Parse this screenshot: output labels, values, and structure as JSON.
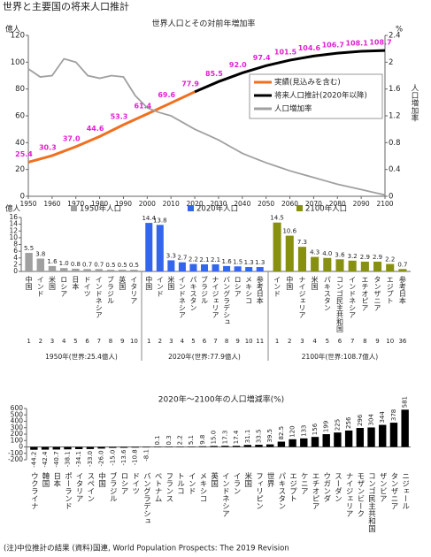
{
  "header": {
    "title": "世界と主要国の将来人口推計"
  },
  "chart_data": [
    {
      "type": "line",
      "title": "世界人口とその対前年増加率",
      "y_label": "億人",
      "y2_label": "%",
      "y2_axis_title": "人口増加率",
      "xlim": [
        1950,
        2100
      ],
      "xticks": [
        1950,
        1960,
        1970,
        1980,
        1990,
        2000,
        2010,
        2020,
        2030,
        2040,
        2050,
        2060,
        2070,
        2080,
        2090,
        2100
      ],
      "ylim": [
        0,
        120
      ],
      "yticks": [
        0,
        20,
        40,
        60,
        80,
        100,
        120
      ],
      "y2lim": [
        0,
        2.4
      ],
      "y2ticks": [
        0,
        0.4,
        0.8,
        1.2,
        1.6,
        2,
        2.4
      ],
      "grid": false,
      "legend": "center right",
      "label_color": "#e020d0",
      "series": [
        {
          "name": "実績(見込みを含む)",
          "color": "#f07020",
          "x": [
            1950,
            1960,
            1970,
            1980,
            1990,
            2000,
            2010,
            2020
          ],
          "values": [
            25.4,
            30.3,
            37.0,
            44.6,
            53.3,
            61.4,
            69.6,
            77.9
          ],
          "value_labels": [
            "25.4",
            "30.3",
            "37.0",
            "44.6",
            "53.3",
            "61.4",
            "69.6",
            "77.9"
          ]
        },
        {
          "name": "将来人口推計(2020年以降)",
          "color": "#000000",
          "x": [
            2020,
            2030,
            2040,
            2050,
            2060,
            2070,
            2080,
            2090,
            2100
          ],
          "values": [
            77.9,
            85.5,
            92.0,
            97.4,
            101.5,
            104.6,
            106.7,
            108.1,
            108.7
          ],
          "value_labels": [
            null,
            "85.5",
            "92.0",
            "97.4",
            "101.5",
            "104.6",
            "106.7",
            "108.1",
            "108.7"
          ]
        },
        {
          "name": "人口増加率",
          "color": "#a0a0a0",
          "axis": "y2",
          "x": [
            1950,
            1955,
            1960,
            1965,
            1970,
            1975,
            1980,
            1985,
            1990,
            1995,
            2000,
            2005,
            2010,
            2015,
            2020,
            2025,
            2030,
            2035,
            2040,
            2045,
            2050,
            2055,
            2060,
            2065,
            2070,
            2075,
            2080,
            2085,
            2090,
            2095,
            2100
          ],
          "values": [
            1.9,
            1.78,
            1.8,
            2.05,
            2.0,
            1.8,
            1.76,
            1.8,
            1.78,
            1.5,
            1.32,
            1.25,
            1.2,
            1.1,
            1.0,
            0.92,
            0.84,
            0.74,
            0.64,
            0.57,
            0.5,
            0.44,
            0.38,
            0.33,
            0.28,
            0.23,
            0.18,
            0.14,
            0.1,
            0.06,
            0.02
          ]
        }
      ]
    },
    {
      "type": "bar",
      "y_label": "億人",
      "ylim": [
        0,
        16
      ],
      "yticks": [
        0,
        2,
        4,
        6,
        8,
        10,
        12,
        14,
        16
      ],
      "series": [
        {
          "name": "1950年人口",
          "color": "#a0a0a0",
          "caption": "1950年(世界:25.4億人)",
          "categories": [
            "中国",
            "インド",
            "米国",
            "ロシア",
            "日本",
            "ドイツ",
            "インドネシア",
            "ブラジル",
            "英国",
            "イタリア"
          ],
          "values": [
            5.5,
            3.8,
            1.6,
            1.0,
            0.8,
            0.7,
            0.7,
            0.5,
            0.5,
            0.5
          ],
          "value_labels": [
            "5.5",
            "3.8",
            "1.6",
            "1.0",
            "0.8",
            "0.7",
            "0.7",
            "0.5",
            "0.5",
            "0.5"
          ],
          "ranks": [
            "1",
            "2",
            "3",
            "4",
            "5",
            "6",
            "7",
            "8",
            "9",
            "10"
          ]
        },
        {
          "name": "2020年人口",
          "color": "#3366ee",
          "caption": "2020年(世界:77.9億人)",
          "categories": [
            "中国",
            "インド",
            "米国",
            "インドネシア",
            "パキスタン",
            "ブラジル",
            "ナイジェリア",
            "バングラデシュ",
            "ロシア",
            "メキシコ",
            "参考日本"
          ],
          "values": [
            14.4,
            13.8,
            3.3,
            2.7,
            2.2,
            2.1,
            2.1,
            1.6,
            1.5,
            1.3,
            1.3
          ],
          "value_labels": [
            "14.4",
            "13.8",
            "3.3",
            "2.7",
            "2.2",
            "2.1",
            "2.1",
            "1.6",
            "1.5",
            "1.3",
            "1.3"
          ],
          "ranks": [
            "1",
            "2",
            "3",
            "4",
            "5",
            "6",
            "7",
            "8",
            "9",
            "10",
            "11"
          ]
        },
        {
          "name": "2100年人口",
          "color": "#889010",
          "caption": "2100年(世界:108.7億人)",
          "categories": [
            "インド",
            "中国",
            "ナイジェリア",
            "米国",
            "パキスタン",
            "コンゴ民主共和国",
            "インドネシア",
            "エチオピア",
            "タンザニア",
            "エジプト",
            "参考日本"
          ],
          "values": [
            14.5,
            10.6,
            7.3,
            4.3,
            4.0,
            3.6,
            3.2,
            2.9,
            2.9,
            2.2,
            0.7
          ],
          "value_labels": [
            "14.5",
            "10.6",
            "7.3",
            "4.3",
            "4.0",
            "3.6",
            "3.2",
            "2.9",
            "2.9",
            "2.2",
            "0.7"
          ],
          "ranks": [
            "1",
            "2",
            "3",
            "4",
            "5",
            "6",
            "7",
            "8",
            "9",
            "10",
            "36"
          ]
        }
      ]
    },
    {
      "type": "bar",
      "title": "2020年～2100年の人口増減率(%)",
      "color": "#000000",
      "ylim": [
        -200,
        600
      ],
      "yticks": [
        -200,
        -100,
        0,
        100,
        200,
        300,
        400,
        500,
        600
      ],
      "categories": [
        "ウクライナ",
        "韓国",
        "日本",
        "ポーランド",
        "イタリア",
        "スペイン",
        "中国",
        "ブラジル",
        "ロシア",
        "ドイツ",
        "バングラデシュ",
        "ベトナム",
        "フランス",
        "トルコ",
        "インド",
        "メキシコ",
        "英国",
        "インドネシア",
        "イラン",
        "米国",
        "フィリピン",
        "世界",
        "パキスタン",
        "エジプト",
        "ケニア",
        "エチオピア",
        "ウガンダ",
        "スーダン",
        "ナイジェリア",
        "モザンビーク",
        "コンゴ民主共和国",
        "ザンビア",
        "タンザニア",
        "ニジェール"
      ],
      "values": [
        -44.2,
        -42.4,
        -40.7,
        -38.1,
        -34.1,
        -33.0,
        -26.0,
        -15.0,
        -13.6,
        -10.8,
        -8.1,
        0.1,
        0.3,
        2.2,
        5.1,
        9.8,
        15.0,
        17.3,
        17.4,
        31.1,
        33.5,
        39.5,
        82.5,
        120,
        133,
        156,
        199,
        225,
        256,
        296,
        304,
        344,
        378,
        581
      ],
      "value_labels": [
        "-44.2",
        "-42.4",
        "-40.7",
        "-38.1",
        "-34.1",
        "-33.0",
        "-26.0",
        "-15.0",
        "-13.6",
        "-10.8",
        "-8.1",
        "0.1",
        "0.3",
        "2.2",
        "5.1",
        "9.8",
        "15.0",
        "17.3",
        "17.4",
        "31.1",
        "33.5",
        "39.5",
        "82.5",
        "120",
        "133",
        "156",
        "199",
        "225",
        "256",
        "296",
        "304",
        "344",
        "378",
        "581"
      ]
    }
  ],
  "footer": {
    "note": "(注)中位推計の結果 (資料)国連, World Population Prospects: The 2019 Revision"
  }
}
